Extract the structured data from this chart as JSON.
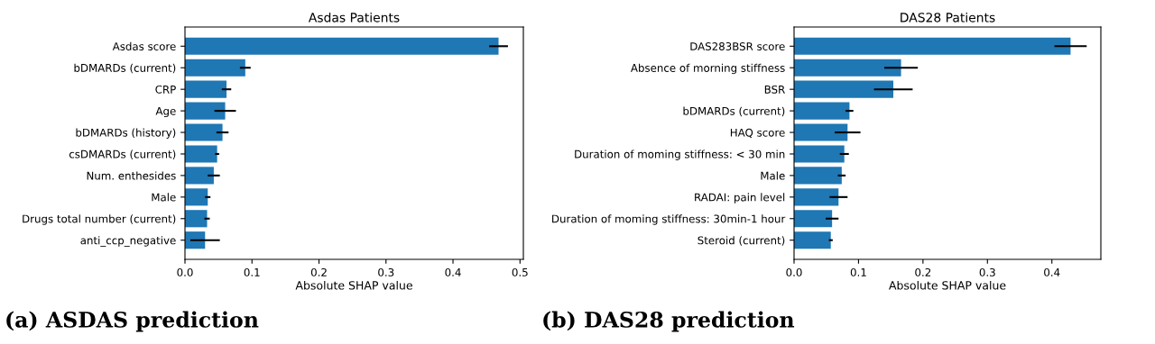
{
  "chart_data": [
    {
      "type": "bar",
      "orientation": "horizontal",
      "title": "Asdas Patients",
      "xlabel": "Absolute SHAP value",
      "categories": [
        "Asdas score",
        "bDMARDs (current)",
        "CRP",
        "Age",
        "bDMARDs (history)",
        "csDMARDs (current)",
        "Num. enthesides",
        "Male",
        "Drugs total number (current)",
        "anti_ccp_negative"
      ],
      "values": [
        0.468,
        0.09,
        0.062,
        0.06,
        0.056,
        0.048,
        0.043,
        0.034,
        0.033,
        0.03
      ],
      "errors": [
        0.014,
        0.008,
        0.007,
        0.016,
        0.009,
        0.003,
        0.009,
        0.004,
        0.004,
        0.022
      ],
      "color": "#1f77b4",
      "xlim": [
        0,
        0.505
      ],
      "xticks": [
        {
          "value": 0,
          "label": "0.0"
        },
        0.1,
        0.2,
        0.3,
        0.4,
        0.5
      ],
      "grid": false,
      "annotations": [
        "(a) ASDAS prediction"
      ]
    },
    {
      "type": "bar",
      "orientation": "horizontal",
      "title": "DAS28 Patients",
      "xlabel": "Absolute SHAP value",
      "categories": [
        "DAS283BSR score",
        "Absence of morning stiffness",
        "BSR",
        "bDMARDs (current)",
        "HAQ score",
        "Duration of moming stiffness: < 30 min",
        "Male",
        "RADAI: pain level",
        "Duration of moming stiffness: 30min-1 hour",
        "Steroid (current)"
      ],
      "values": [
        0.429,
        0.166,
        0.154,
        0.086,
        0.083,
        0.078,
        0.074,
        0.069,
        0.059,
        0.057
      ],
      "errors": [
        0.025,
        0.026,
        0.03,
        0.006,
        0.02,
        0.007,
        0.006,
        0.014,
        0.01,
        0.003
      ],
      "color": "#1f77b4",
      "xlim": [
        0,
        0.476
      ],
      "xticks": [
        {
          "value": 0,
          "label": "0.0"
        },
        0.1,
        0.2,
        0.3,
        0.4
      ],
      "grid": false,
      "annotations": [
        "(b) DAS28 prediction"
      ]
    }
  ]
}
